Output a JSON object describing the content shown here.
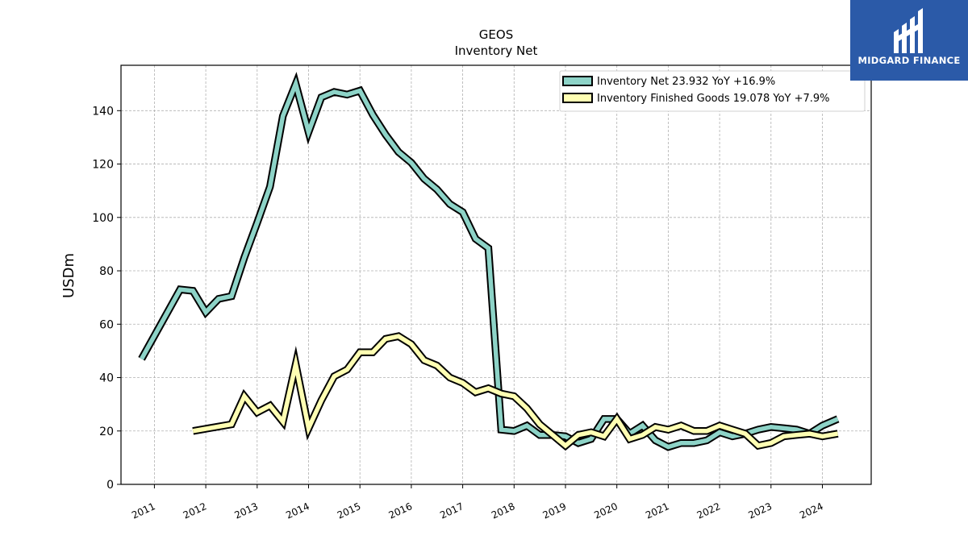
{
  "chart_data": {
    "type": "line",
    "title": "GEOS",
    "subtitle": "Inventory Net",
    "ylabel": "USDm",
    "xlabel": "",
    "ylim": [
      0,
      157
    ],
    "xlim": [
      2010.35,
      2024.95
    ],
    "yticks": [
      0,
      20,
      40,
      60,
      80,
      100,
      120,
      140
    ],
    "xticks": [
      "2011",
      "2012",
      "2013",
      "2014",
      "2015",
      "2016",
      "2017",
      "2018",
      "2019",
      "2020",
      "2021",
      "2022",
      "2023",
      "2024"
    ],
    "grid": true,
    "legend_position": "top-right",
    "series": [
      {
        "name": "Inventory Net  23.932 YoY +16.9%",
        "color": "#8dd3c7",
        "points": [
          [
            2010.75,
            47
          ],
          [
            2011.5,
            73
          ],
          [
            2011.75,
            72.5
          ],
          [
            2012.0,
            64.5
          ],
          [
            2012.25,
            69.5
          ],
          [
            2012.5,
            70.5
          ],
          [
            2012.75,
            85
          ],
          [
            2013.0,
            98
          ],
          [
            2013.25,
            111.5
          ],
          [
            2013.5,
            138
          ],
          [
            2013.75,
            150
          ],
          [
            2014.0,
            132
          ],
          [
            2014.25,
            145
          ],
          [
            2014.5,
            147
          ],
          [
            2014.75,
            146
          ],
          [
            2015.0,
            147.5
          ],
          [
            2015.25,
            138.5
          ],
          [
            2015.5,
            131
          ],
          [
            2015.75,
            124.5
          ],
          [
            2016.0,
            120.5
          ],
          [
            2016.25,
            114.5
          ],
          [
            2016.5,
            110.5
          ],
          [
            2016.75,
            105
          ],
          [
            2017.0,
            102
          ],
          [
            2017.25,
            92
          ],
          [
            2017.5,
            88.5
          ],
          [
            2017.75,
            20.5
          ],
          [
            2018.0,
            20
          ],
          [
            2018.25,
            22
          ],
          [
            2018.5,
            18.5
          ],
          [
            2018.75,
            18.5
          ],
          [
            2019.0,
            18
          ],
          [
            2019.25,
            15.5
          ],
          [
            2019.5,
            17
          ],
          [
            2019.75,
            24.5
          ],
          [
            2020.0,
            24.5
          ],
          [
            2020.25,
            19
          ],
          [
            2020.5,
            22
          ],
          [
            2020.75,
            16.5
          ],
          [
            2021.0,
            14
          ],
          [
            2021.25,
            15.5
          ],
          [
            2021.5,
            15.5
          ],
          [
            2021.75,
            16.5
          ],
          [
            2022.0,
            19.5
          ],
          [
            2022.25,
            18
          ],
          [
            2022.5,
            19
          ],
          [
            2022.75,
            20.5
          ],
          [
            2023.0,
            21.5
          ],
          [
            2023.25,
            21
          ],
          [
            2023.5,
            20.5
          ],
          [
            2023.75,
            19
          ],
          [
            2024.0,
            22
          ],
          [
            2024.3,
            24.5
          ]
        ]
      },
      {
        "name": "Inventory Finished Goods  19.078 YoY +7.9%",
        "color": "#ffffb3",
        "points": [
          [
            2011.75,
            20
          ],
          [
            2012.5,
            22.5
          ],
          [
            2012.75,
            33
          ],
          [
            2013.0,
            27
          ],
          [
            2013.25,
            29.5
          ],
          [
            2013.5,
            23.5
          ],
          [
            2013.75,
            45
          ],
          [
            2014.0,
            21
          ],
          [
            2014.25,
            31.5
          ],
          [
            2014.5,
            40.5
          ],
          [
            2014.75,
            43
          ],
          [
            2015.0,
            49.5
          ],
          [
            2015.25,
            49.5
          ],
          [
            2015.5,
            54.5
          ],
          [
            2015.75,
            55.5
          ],
          [
            2016.0,
            52.5
          ],
          [
            2016.25,
            46.5
          ],
          [
            2016.5,
            44.5
          ],
          [
            2016.75,
            40
          ],
          [
            2017.0,
            38
          ],
          [
            2017.25,
            34.5
          ],
          [
            2017.5,
            36
          ],
          [
            2017.75,
            34
          ],
          [
            2018.0,
            33
          ],
          [
            2018.25,
            28.5
          ],
          [
            2018.5,
            22.5
          ],
          [
            2018.75,
            18.5
          ],
          [
            2019.0,
            14.5
          ],
          [
            2019.25,
            18.5
          ],
          [
            2019.5,
            19.5
          ],
          [
            2019.75,
            18
          ],
          [
            2020.0,
            24.5
          ],
          [
            2020.25,
            17
          ],
          [
            2020.5,
            18.5
          ],
          [
            2020.75,
            21.5
          ],
          [
            2021.0,
            20.5
          ],
          [
            2021.25,
            22
          ],
          [
            2021.5,
            20
          ],
          [
            2021.75,
            20
          ],
          [
            2022.0,
            22
          ],
          [
            2022.25,
            20.5
          ],
          [
            2022.5,
            19
          ],
          [
            2022.75,
            14.5
          ],
          [
            2023.0,
            15.5
          ],
          [
            2023.25,
            18
          ],
          [
            2023.5,
            18.5
          ],
          [
            2023.75,
            19
          ],
          [
            2024.0,
            18
          ],
          [
            2024.3,
            19
          ]
        ]
      }
    ]
  },
  "logo": {
    "text": "MIDGARD FINANCE",
    "bg_color": "#2b5aa8"
  }
}
